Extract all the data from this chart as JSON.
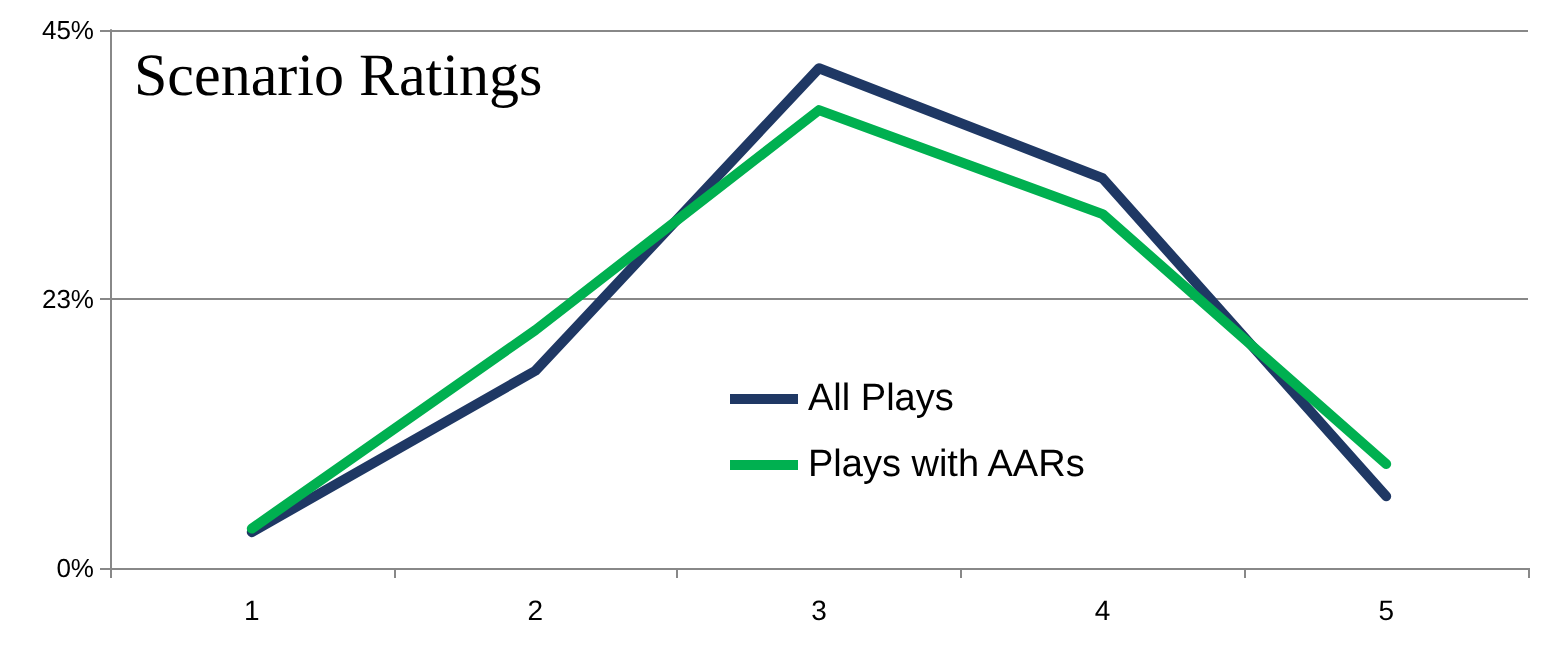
{
  "chart_data": {
    "type": "line",
    "title": "Scenario Ratings",
    "categories": [
      "1",
      "2",
      "3",
      "4",
      "5"
    ],
    "series": [
      {
        "name": "All Plays",
        "color": "#1f3864",
        "values": [
          3.0,
          16.5,
          41.8,
          32.6,
          6.0
        ]
      },
      {
        "name": "Plays with AARs",
        "color": "#00b050",
        "values": [
          3.3,
          19.9,
          38.3,
          29.6,
          8.7
        ]
      }
    ],
    "ylim": [
      0,
      45
    ],
    "yticks": [
      {
        "value": 0,
        "label": "0%"
      },
      {
        "value": 22.5,
        "label": "23%"
      },
      {
        "value": 45,
        "label": "45%"
      }
    ],
    "grid": "y",
    "legend": "center",
    "marker": "none",
    "line_style": "solid"
  }
}
